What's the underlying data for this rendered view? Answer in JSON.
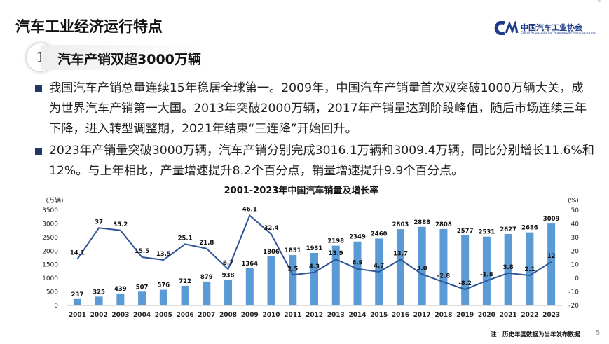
{
  "top_page": "4",
  "header": {
    "title": "汽车工业经济运行特点",
    "logo_cn": "中国汽车工业协会",
    "logo_en": "China Association of Automobile Manufacturers"
  },
  "section": {
    "number": "1",
    "title": "汽车产销双超3000万辆"
  },
  "bullets": [
    "我国汽车产销总量连续15年稳居全球第一。2009年，中国汽车产销量首次双突破1000万辆大关，成为世界汽车产销第一大国。2013年突破2000万辆，2017年产销量达到阶段峰值，随后市场连续三年下降，进入转型调整期，2021年结束“三连降”开始回升。",
    "2023年产销量突破3000万辆，汽车产销分别完成3016.1万辆和3009.4万辆，同比分别增长11.6%和12%。与上年相比，产量增速提升8.2个百分点，销量增速提升9.9个百分点。"
  ],
  "chart_data": {
    "type": "bar_line",
    "title": "2001-2023年中国汽车销量及增长率",
    "y_label": "(万辆)",
    "y2_label": "(%)",
    "categories": [
      "2001",
      "2002",
      "2003",
      "2004",
      "2005",
      "2006",
      "2007",
      "2008",
      "2009",
      "2010",
      "2011",
      "2012",
      "2013",
      "2014",
      "2015",
      "2016",
      "2017",
      "2018",
      "2019",
      "2020",
      "2021",
      "2022",
      "2023"
    ],
    "series": [
      {
        "type": "bar",
        "color": "#5b9bd5",
        "values": [
          237,
          325,
          439,
          507,
          576,
          722,
          879,
          938,
          1364,
          1806,
          1851,
          1931,
          2198,
          2349,
          2460,
          2803,
          2888,
          2808,
          2577,
          2531,
          2627,
          2686,
          3009
        ]
      },
      {
        "type": "line",
        "axis": "y2",
        "color": "#2f5597",
        "values": [
          14.1,
          37,
          35.2,
          15.5,
          13.5,
          25.1,
          21.8,
          6.7,
          46.1,
          32.4,
          2.5,
          4.3,
          13.9,
          6.9,
          4.7,
          13.7,
          3.0,
          -2.8,
          -8.2,
          -1.8,
          3.8,
          2.1,
          12
        ],
        "value_labels": [
          "14.1",
          "37",
          "35.2",
          "15.5",
          "13.5",
          "25.1",
          "21.8",
          "6.7",
          "46.1",
          "32.4",
          "2.5",
          "4.3",
          "13.9",
          "6.9",
          "4.7",
          "13.7",
          "3.0",
          "-2.8",
          "-8.2",
          "-1.8",
          "3.8",
          "2.1",
          "12"
        ]
      }
    ],
    "ylim": [
      0,
      3500
    ],
    "yticks": [
      0,
      500,
      1000,
      1500,
      2000,
      2500,
      3000,
      3500
    ],
    "y2lim": [
      -20,
      50
    ],
    "y2ticks": [
      -20,
      -10,
      0,
      10,
      20,
      30,
      40,
      50
    ]
  },
  "note": "注：历史年度数据为当年发布数据",
  "page_number": "5"
}
